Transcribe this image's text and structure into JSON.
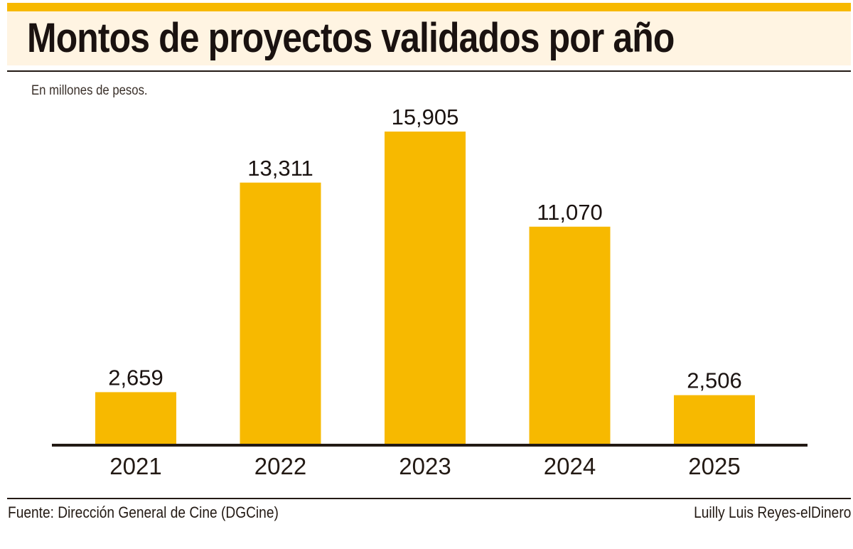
{
  "header": {
    "title": "Montos de proyectos validados por año",
    "subtitle": "En millones de pesos."
  },
  "footer": {
    "source": "Fuente: Dirección General de Cine (DGCine)",
    "credit": "Luilly Luis Reyes-elDinero"
  },
  "colors": {
    "bar": "#f7b900",
    "accent_strip": "#f7b900",
    "title_band": "#fff4e2",
    "text": "#231a14"
  },
  "chart_data": {
    "type": "bar",
    "title": "Montos de proyectos validados por año",
    "subtitle": "En millones de pesos.",
    "xlabel": "",
    "ylabel": "",
    "categories": [
      "2021",
      "2022",
      "2023",
      "2024",
      "2025"
    ],
    "values": [
      2659,
      13311,
      15905,
      11070,
      2506
    ],
    "value_labels": [
      "2,659",
      "13,311",
      "15,905",
      "11,070",
      "2,506"
    ],
    "ylim": [
      0,
      15905
    ],
    "grid": false,
    "legend": "none",
    "y_axis_visible": false
  }
}
